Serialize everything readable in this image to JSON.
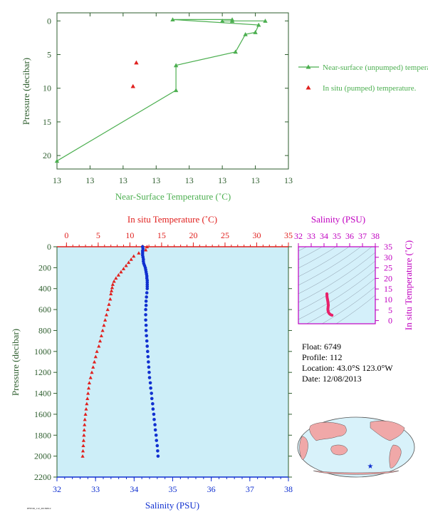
{
  "colors": {
    "green": "#4caf50",
    "axis_green": "#2e5e2e",
    "red": "#e0201e",
    "blue": "#1030d0",
    "magenta": "#c000c0",
    "navy": "#101070",
    "panel_bg": "#cdeef8",
    "inset_bg": "#d4f0fa",
    "land": "#f0a8a8",
    "ocean": "#d8f2fa"
  },
  "meta": {
    "float_line": "Float:  6749",
    "profile_line": "Profile:  112",
    "location_line": "Location:  43.0°S  123.0°W",
    "date_line": "Date:  12/08/2013",
    "footer": "PF6749_112_20130812"
  },
  "chart_data": [
    {
      "type": "line",
      "xlabel": "Near-Surface Temperature (˚C)",
      "ylabel": "Pressure (decibar)",
      "x_tick_labels": [
        "13",
        "13",
        "13",
        "13",
        "13",
        "13",
        "13",
        "13"
      ],
      "y_ticks": [
        0,
        5,
        10,
        15,
        20
      ],
      "xlim": [
        12.35,
        13.05
      ],
      "ylim": [
        22,
        -1.2
      ],
      "legend_placement": "right",
      "series": [
        {
          "name": "Near-surface (unpumped) temperature.",
          "marker": "triangle",
          "color": "#4caf50",
          "points": [
            [
              12.35,
              20.8
            ],
            [
              12.71,
              10.3
            ],
            [
              12.71,
              6.6
            ],
            [
              12.89,
              4.6
            ],
            [
              12.92,
              2.0
            ],
            [
              12.95,
              1.7
            ],
            [
              12.96,
              0.6
            ],
            [
              12.7,
              -0.2
            ],
            [
              12.88,
              -0.2
            ],
            [
              12.88,
              0.0
            ],
            [
              12.98,
              0.0
            ],
            [
              12.85,
              0.0
            ]
          ]
        },
        {
          "name": "In situ (pumped) temperature.",
          "marker": "triangle",
          "color": "#e0201e",
          "points": [
            [
              12.59,
              6.2
            ],
            [
              12.58,
              9.7
            ]
          ]
        }
      ]
    },
    {
      "type": "scatter",
      "title_top": "In situ Temperature (˚C)",
      "xlabel_bottom": "Salinity (PSU)",
      "ylabel": "Pressure (decibar)",
      "temp_xlim": [
        -1.5,
        35
      ],
      "temp_ticks": [
        0,
        5,
        10,
        15,
        20,
        25,
        30,
        35
      ],
      "sal_xlim": [
        32,
        38
      ],
      "sal_ticks": [
        32,
        33,
        34,
        35,
        36,
        37,
        38
      ],
      "ylim": [
        2200,
        0
      ],
      "y_ticks": [
        0,
        200,
        400,
        600,
        800,
        1000,
        1200,
        1400,
        1600,
        1800,
        2000,
        2200
      ],
      "temperature_profile": {
        "color": "#e0201e",
        "marker": "triangle",
        "points": [
          [
            12.7,
            0
          ],
          [
            12.5,
            30
          ],
          [
            11.4,
            60
          ],
          [
            10.6,
            90
          ],
          [
            10.2,
            120
          ],
          [
            9.8,
            150
          ],
          [
            9.4,
            180
          ],
          [
            9.0,
            210
          ],
          [
            8.6,
            240
          ],
          [
            8.2,
            270
          ],
          [
            7.8,
            300
          ],
          [
            7.5,
            330
          ],
          [
            7.3,
            360
          ],
          [
            7.2,
            390
          ],
          [
            7.1,
            420
          ],
          [
            7.0,
            450
          ],
          [
            6.9,
            500
          ],
          [
            6.7,
            550
          ],
          [
            6.5,
            600
          ],
          [
            6.3,
            650
          ],
          [
            6.1,
            700
          ],
          [
            5.9,
            750
          ],
          [
            5.7,
            800
          ],
          [
            5.5,
            850
          ],
          [
            5.3,
            900
          ],
          [
            5.1,
            950
          ],
          [
            4.8,
            1000
          ],
          [
            4.6,
            1050
          ],
          [
            4.4,
            1100
          ],
          [
            4.2,
            1150
          ],
          [
            4.0,
            1200
          ],
          [
            3.8,
            1250
          ],
          [
            3.6,
            1300
          ],
          [
            3.5,
            1350
          ],
          [
            3.4,
            1400
          ],
          [
            3.3,
            1450
          ],
          [
            3.2,
            1500
          ],
          [
            3.1,
            1550
          ],
          [
            3.0,
            1600
          ],
          [
            2.9,
            1650
          ],
          [
            2.85,
            1700
          ],
          [
            2.8,
            1750
          ],
          [
            2.75,
            1800
          ],
          [
            2.7,
            1850
          ],
          [
            2.65,
            1900
          ],
          [
            2.6,
            1950
          ],
          [
            2.55,
            2000
          ]
        ]
      },
      "salinity_profile": {
        "color": "#1030d0",
        "marker": "circle",
        "points": [
          [
            34.22,
            0
          ],
          [
            34.23,
            20
          ],
          [
            34.22,
            40
          ],
          [
            34.22,
            60
          ],
          [
            34.22,
            80
          ],
          [
            34.23,
            100
          ],
          [
            34.24,
            120
          ],
          [
            34.24,
            140
          ],
          [
            34.25,
            160
          ],
          [
            34.27,
            180
          ],
          [
            34.29,
            200
          ],
          [
            34.3,
            220
          ],
          [
            34.31,
            240
          ],
          [
            34.32,
            260
          ],
          [
            34.33,
            280
          ],
          [
            34.33,
            300
          ],
          [
            34.34,
            320
          ],
          [
            34.34,
            340
          ],
          [
            34.34,
            360
          ],
          [
            34.34,
            380
          ],
          [
            34.34,
            400
          ],
          [
            34.33,
            440
          ],
          [
            34.32,
            480
          ],
          [
            34.31,
            520
          ],
          [
            34.31,
            560
          ],
          [
            34.3,
            600
          ],
          [
            34.3,
            650
          ],
          [
            34.3,
            700
          ],
          [
            34.31,
            750
          ],
          [
            34.31,
            800
          ],
          [
            34.32,
            850
          ],
          [
            34.33,
            900
          ],
          [
            34.34,
            950
          ],
          [
            34.35,
            1000
          ],
          [
            34.36,
            1050
          ],
          [
            34.37,
            1100
          ],
          [
            34.38,
            1150
          ],
          [
            34.39,
            1200
          ],
          [
            34.4,
            1250
          ],
          [
            34.42,
            1300
          ],
          [
            34.43,
            1350
          ],
          [
            34.45,
            1400
          ],
          [
            34.46,
            1450
          ],
          [
            34.48,
            1500
          ],
          [
            34.49,
            1550
          ],
          [
            34.51,
            1600
          ],
          [
            34.52,
            1650
          ],
          [
            34.54,
            1700
          ],
          [
            34.55,
            1750
          ],
          [
            34.57,
            1800
          ],
          [
            34.58,
            1850
          ],
          [
            34.6,
            1900
          ],
          [
            34.61,
            1950
          ],
          [
            34.62,
            2000
          ]
        ]
      }
    },
    {
      "type": "scatter",
      "title_top": "Salinity (PSU)",
      "ylabel_right": "In situ Temperature (˚C)",
      "sal_xlim": [
        32,
        38
      ],
      "sal_ticks": [
        32,
        33,
        34,
        35,
        36,
        37,
        38
      ],
      "temp_ylim": [
        -1.5,
        35
      ],
      "temp_ticks": [
        0,
        5,
        10,
        15,
        20,
        25,
        30,
        35
      ],
      "color": "#e8206a",
      "points": [
        [
          34.22,
          12.7
        ],
        [
          34.23,
          12.0
        ],
        [
          34.24,
          11.0
        ],
        [
          34.27,
          10.0
        ],
        [
          34.3,
          9.0
        ],
        [
          34.32,
          8.0
        ],
        [
          34.34,
          7.2
        ],
        [
          34.32,
          6.8
        ],
        [
          34.31,
          6.0
        ],
        [
          34.3,
          5.5
        ],
        [
          34.31,
          4.8
        ],
        [
          34.33,
          4.2
        ],
        [
          34.36,
          3.8
        ],
        [
          34.4,
          3.4
        ],
        [
          34.45,
          3.1
        ],
        [
          34.52,
          2.8
        ],
        [
          34.58,
          2.65
        ],
        [
          34.62,
          2.55
        ]
      ]
    }
  ]
}
